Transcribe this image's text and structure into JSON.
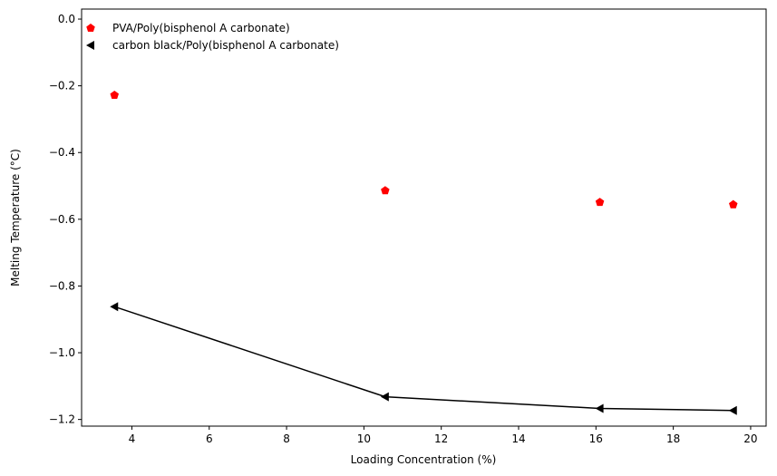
{
  "chart_data": {
    "type": "scatter",
    "title": "",
    "xlabel": "Loading Concentration (%)",
    "ylabel": "Melting Temperature (°C)",
    "xlim": [
      2.7,
      20.4
    ],
    "ylim": [
      -1.22,
      0.03
    ],
    "xticks": [
      4,
      6,
      8,
      10,
      12,
      14,
      16,
      18,
      20
    ],
    "yticks": [
      0.0,
      -0.2,
      -0.4,
      -0.6,
      -0.8,
      -1.0,
      -1.2
    ],
    "xtick_labels": [
      "4",
      "6",
      "8",
      "10",
      "12",
      "14",
      "16",
      "18",
      "20"
    ],
    "ytick_labels": [
      "0.0",
      "−0.2",
      "−0.4",
      "−0.6",
      "−0.8",
      "−1.0",
      "−1.2"
    ],
    "grid": false,
    "legend_position": "top-left",
    "series": [
      {
        "name": "PVA/Poly(bisphenol A carbonate)",
        "marker": "pentagon",
        "color": "#ff0000",
        "line": false,
        "x": [
          3.55,
          10.55,
          16.1,
          19.55
        ],
        "y": [
          -0.228,
          -0.514,
          -0.549,
          -0.556
        ]
      },
      {
        "name": "carbon black/Poly(bisphenol A carbonate)",
        "marker": "triangle-left",
        "color": "#000000",
        "line": true,
        "x": [
          3.55,
          10.55,
          16.1,
          19.55
        ],
        "y": [
          -0.862,
          -1.132,
          -1.167,
          -1.173
        ]
      }
    ]
  }
}
